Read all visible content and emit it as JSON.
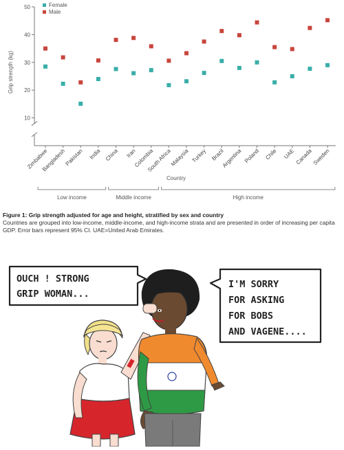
{
  "chart_data": {
    "type": "scatter",
    "categories": [
      "Zimbabwe",
      "Bangladesh",
      "Pakistan",
      "India",
      "China",
      "Iran",
      "Colombia",
      "South Africa",
      "Malaysia",
      "Turkey",
      "Brazil",
      "Argentina",
      "Poland",
      "Chile",
      "UAE",
      "Canada",
      "Sweden"
    ],
    "series": [
      {
        "name": "Female",
        "color": "#3aaea9",
        "values": [
          28.5,
          22.3,
          15.1,
          24.0,
          27.6,
          26.1,
          27.2,
          21.8,
          23.2,
          26.2,
          30.5,
          28.0,
          30.0,
          22.8,
          25.0,
          27.7,
          29.0
        ]
      },
      {
        "name": "Male",
        "color": "#c8463d",
        "values": [
          35.0,
          31.8,
          22.8,
          30.7,
          38.1,
          38.8,
          35.8,
          30.6,
          33.3,
          37.5,
          41.3,
          39.8,
          44.4,
          35.5,
          34.8,
          42.4,
          45.2
        ]
      }
    ],
    "ylabel": "Grip strength (kg)",
    "xlabel": "Country",
    "yticks": [
      10,
      20,
      30,
      40,
      50
    ],
    "ylim": [
      0,
      50
    ],
    "legend_position": "top-left",
    "groups": [
      {
        "label": "Low income",
        "from": 0,
        "to": 3
      },
      {
        "label": "Middle income",
        "from": 4,
        "to": 6
      },
      {
        "label": "High income",
        "from": 7,
        "to": 16
      }
    ]
  },
  "caption": {
    "title": "Figure 1: Grip strength adjusted for age and height, stratified by sex and country",
    "body": "Countries are grouped into low-income, middle-income, and high-income strata and are presented in order of increasing per capita GDP. Error bars represent 95% CI. UAE=United Arab Emirates."
  },
  "comic": {
    "left_bubble_lines": [
      "OUCH ! STRONG",
      "GRIP WOMAN..."
    ],
    "right_bubble_lines": [
      "I'M SORRY",
      "FOR ASKING",
      "FOR BOBS",
      "AND VAGENE...."
    ]
  }
}
